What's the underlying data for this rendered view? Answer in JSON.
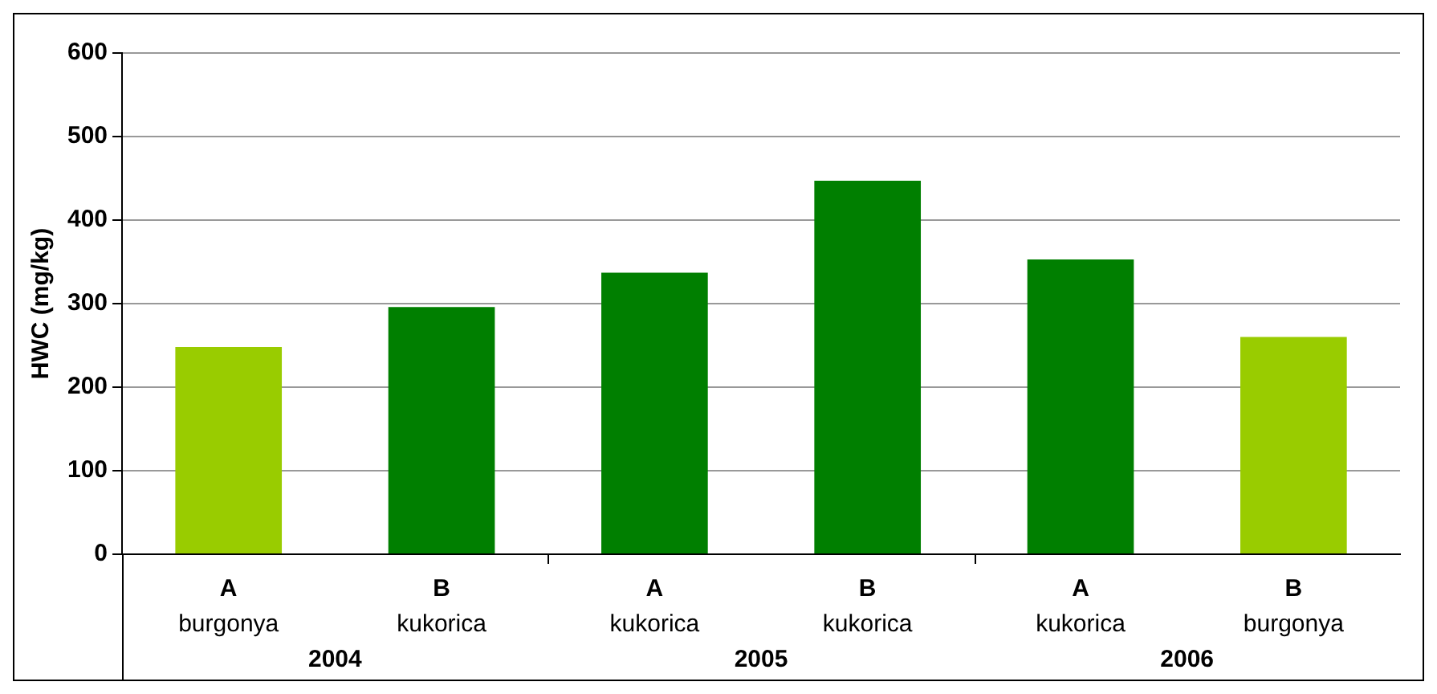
{
  "chart_data": {
    "type": "bar",
    "ylabel": "HWC (mg/kg)",
    "categories": [
      "A\nburgonya",
      "B\nkukorica",
      "A\nkukorica",
      "B\nkukorica",
      "A\nkukorica",
      "B\nburgonya"
    ],
    "values": [
      248,
      296,
      337,
      447,
      353,
      260
    ],
    "colors": [
      "#99cc00",
      "#007f00",
      "#007f00",
      "#007f00",
      "#007f00",
      "#99cc00"
    ],
    "annotations": [
      "2004",
      "2005",
      "2006"
    ],
    "ylim": [
      0,
      600
    ],
    "yticks": [
      0,
      100,
      200,
      300,
      400,
      500,
      600
    ],
    "grid": "y",
    "legend": false
  }
}
